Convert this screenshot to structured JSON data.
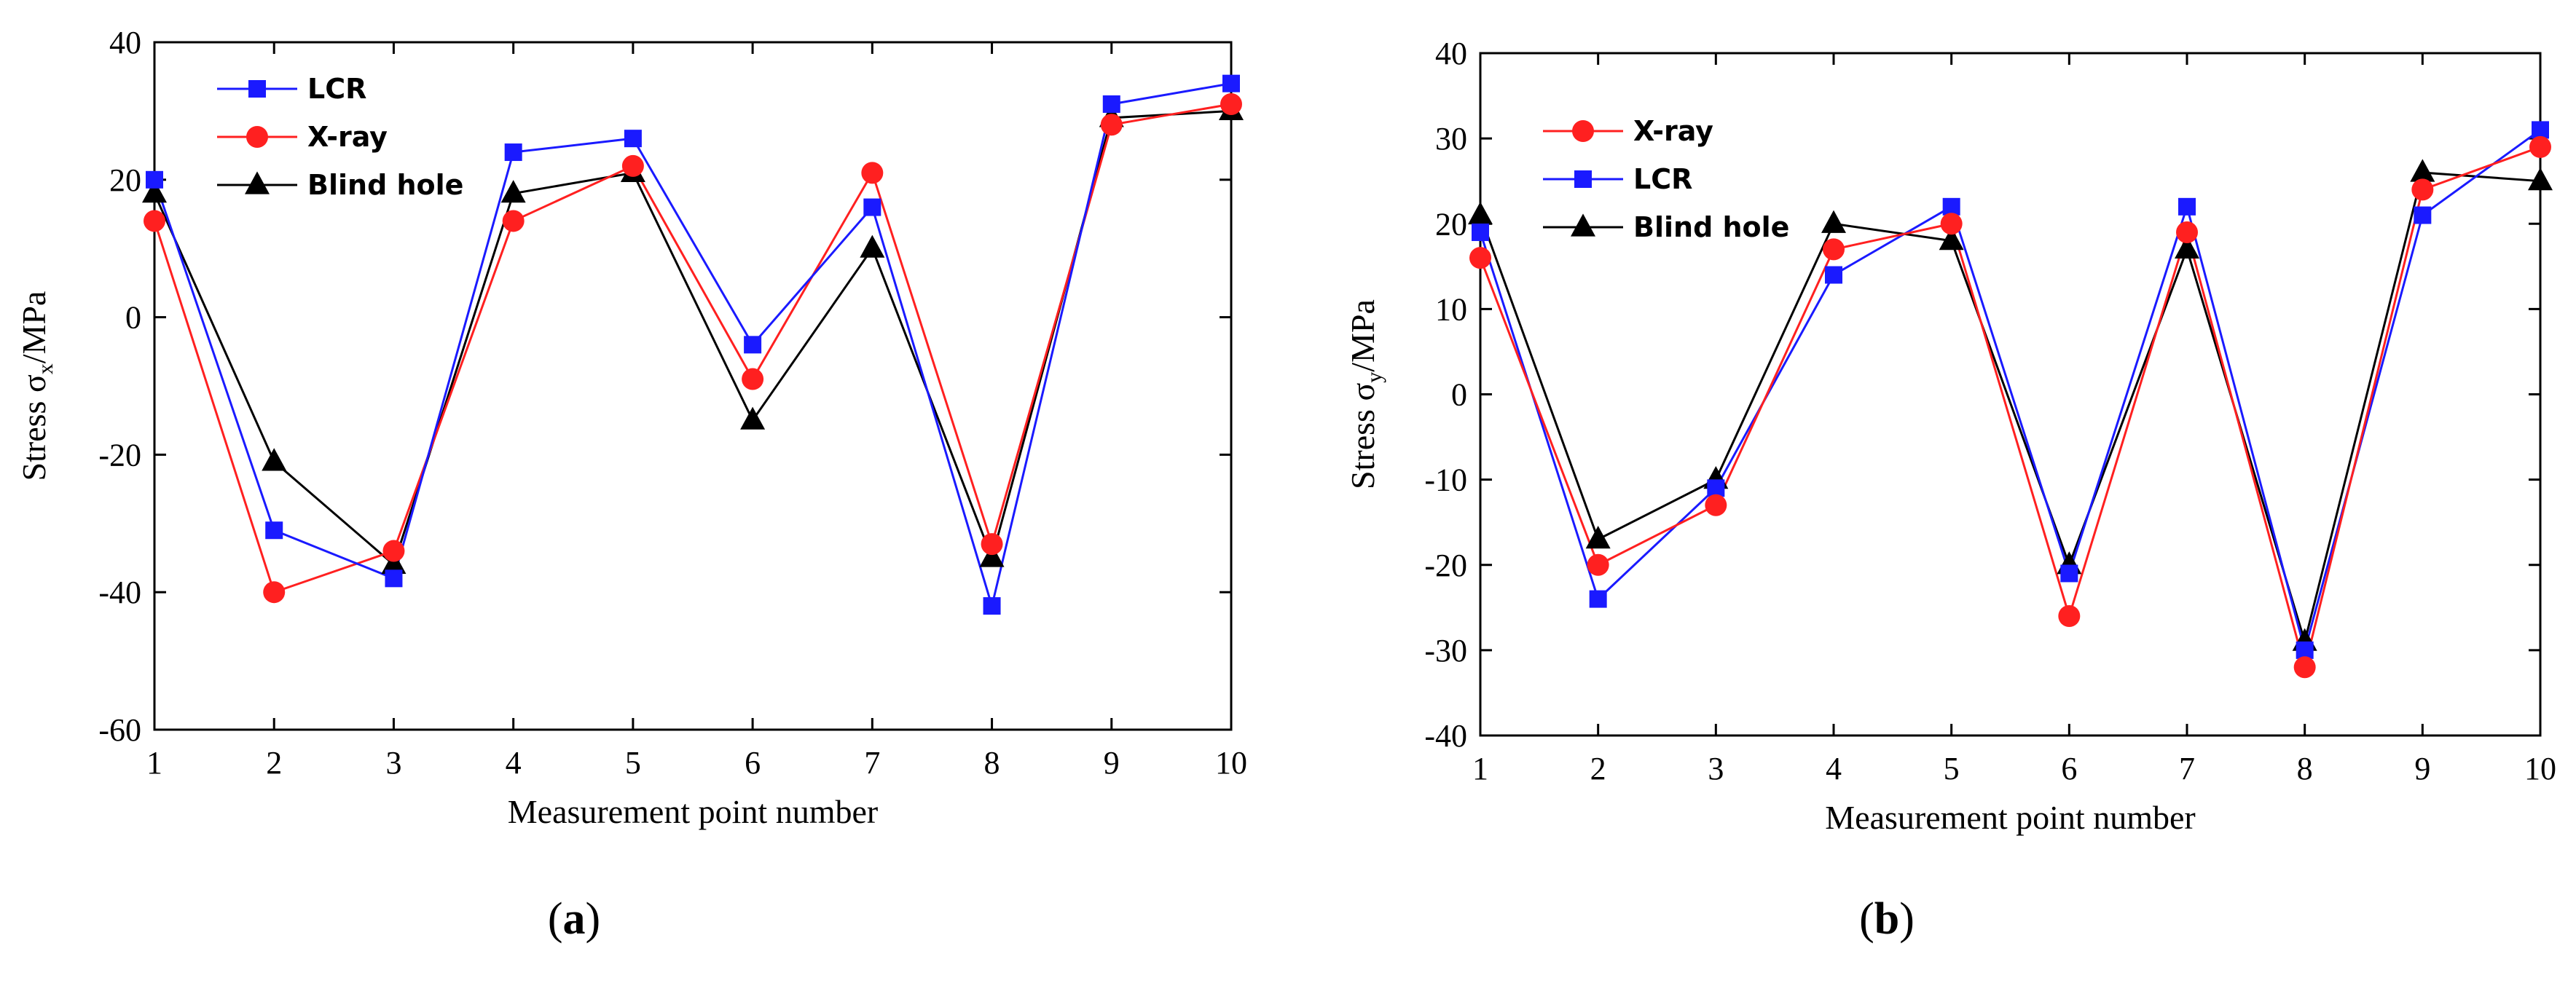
{
  "chart_data": [
    {
      "type": "line",
      "panel": "(a)",
      "panel_letter": "a",
      "xlabel": "Measurement point  number",
      "ylabel": "Stress σx/MPa",
      "ylabel_main": "Stress σ",
      "ylabel_sub": "x",
      "ylabel_unit": "/MPa",
      "xlim": [
        1,
        10
      ],
      "ylim": [
        -60,
        40
      ],
      "xticks": [
        1,
        2,
        3,
        4,
        5,
        6,
        7,
        8,
        9,
        10
      ],
      "yticks": [
        -60,
        -40,
        -20,
        0,
        20,
        40
      ],
      "x": [
        1,
        2,
        3,
        4,
        5,
        6,
        7,
        8,
        9,
        10
      ],
      "series": [
        {
          "name": "LCR",
          "color": "#1a1aff",
          "marker": "square",
          "values": [
            20,
            -31,
            -38,
            24,
            26,
            -4,
            16,
            -42,
            31,
            34
          ]
        },
        {
          "name": "X-ray",
          "color": "#ff2020",
          "marker": "circle",
          "values": [
            14,
            -40,
            -34,
            14,
            22,
            -9,
            21,
            -33,
            28,
            31
          ]
        },
        {
          "name": "Blind hole",
          "color": "#000000",
          "marker": "triangle",
          "values": [
            18,
            -21,
            -36,
            18,
            21,
            -15,
            10,
            -35,
            29,
            30
          ]
        }
      ],
      "legend_order": [
        "LCR",
        "X-ray",
        "Blind hole"
      ],
      "legend_position": "top-left"
    },
    {
      "type": "line",
      "panel": "(b)",
      "panel_letter": "b",
      "xlabel": "Measurement point  number",
      "ylabel": "Stress σy/MPa",
      "ylabel_main": "Stress σ",
      "ylabel_sub": "y",
      "ylabel_unit": "/MPa",
      "xlim": [
        1,
        10
      ],
      "ylim": [
        -40,
        40
      ],
      "xticks": [
        1,
        2,
        3,
        4,
        5,
        6,
        7,
        8,
        9,
        10
      ],
      "yticks": [
        -40,
        -30,
        -20,
        -10,
        0,
        10,
        20,
        30,
        40
      ],
      "x": [
        1,
        2,
        3,
        4,
        5,
        6,
        7,
        8,
        9,
        10
      ],
      "series": [
        {
          "name": "X-ray",
          "color": "#ff2020",
          "marker": "circle",
          "values": [
            16,
            -20,
            -13,
            17,
            20,
            -26,
            19,
            -32,
            24,
            29
          ]
        },
        {
          "name": "LCR",
          "color": "#1a1aff",
          "marker": "square",
          "values": [
            19,
            -24,
            -11,
            14,
            22,
            -21,
            22,
            -30,
            21,
            31
          ]
        },
        {
          "name": "Blind hole",
          "color": "#000000",
          "marker": "triangle",
          "values": [
            21,
            -17,
            -10,
            20,
            18,
            -20,
            17,
            -29,
            26,
            25
          ]
        }
      ],
      "legend_order": [
        "X-ray",
        "LCR",
        "Blind hole"
      ],
      "legend_position": "top-left"
    }
  ]
}
